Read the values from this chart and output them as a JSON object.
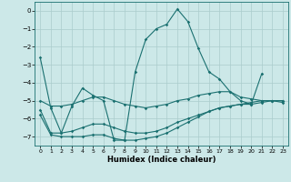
{
  "title": "",
  "xlabel": "Humidex (Indice chaleur)",
  "bg_color": "#cce8e8",
  "grid_color": "#aacccc",
  "line_color": "#1a7070",
  "xlim": [
    -0.5,
    23.5
  ],
  "ylim": [
    -7.5,
    0.5
  ],
  "yticks": [
    0,
    -1,
    -2,
    -3,
    -4,
    -5,
    -6,
    -7
  ],
  "xticks": [
    0,
    1,
    2,
    3,
    4,
    5,
    6,
    7,
    8,
    9,
    10,
    11,
    12,
    13,
    14,
    15,
    16,
    17,
    18,
    19,
    20,
    21,
    22,
    23
  ],
  "series": [
    {
      "x": [
        0,
        1,
        2,
        3,
        4,
        5,
        6,
        7,
        8,
        9,
        10,
        11,
        12,
        13,
        14,
        15,
        16,
        17,
        18,
        19,
        20,
        21
      ],
      "y": [
        -2.6,
        -5.4,
        -6.8,
        -5.3,
        -4.3,
        -4.7,
        -5.0,
        -7.2,
        -7.2,
        -3.4,
        -1.6,
        -1.0,
        -0.75,
        0.1,
        -0.6,
        -2.1,
        -3.4,
        -3.8,
        -4.5,
        -5.0,
        -5.2,
        -3.5
      ]
    },
    {
      "x": [
        0,
        1,
        2,
        3,
        4,
        5,
        6,
        7,
        8,
        9,
        10,
        11,
        12,
        13,
        14,
        15,
        16,
        17,
        18,
        19,
        20,
        21,
        22,
        23
      ],
      "y": [
        -5.0,
        -5.3,
        -5.3,
        -5.2,
        -5.0,
        -4.8,
        -4.8,
        -5.0,
        -5.2,
        -5.3,
        -5.4,
        -5.3,
        -5.2,
        -5.0,
        -4.9,
        -4.7,
        -4.6,
        -4.5,
        -4.5,
        -4.8,
        -4.9,
        -5.0,
        -5.0,
        -5.1
      ]
    },
    {
      "x": [
        0,
        1,
        2,
        3,
        4,
        5,
        6,
        7,
        8,
        9,
        10,
        11,
        12,
        13,
        14,
        15,
        16,
        17,
        18,
        19,
        20,
        21,
        22,
        23
      ],
      "y": [
        -5.5,
        -6.8,
        -6.8,
        -6.7,
        -6.5,
        -6.3,
        -6.3,
        -6.5,
        -6.7,
        -6.8,
        -6.8,
        -6.7,
        -6.5,
        -6.2,
        -6.0,
        -5.8,
        -5.6,
        -5.4,
        -5.3,
        -5.2,
        -5.2,
        -5.1,
        -5.0,
        -5.0
      ]
    },
    {
      "x": [
        0,
        1,
        2,
        3,
        4,
        5,
        6,
        7,
        8,
        9,
        10,
        11,
        12,
        13,
        14,
        15,
        16,
        17,
        18,
        19,
        20,
        21,
        22,
        23
      ],
      "y": [
        -5.8,
        -6.9,
        -7.0,
        -7.0,
        -7.0,
        -6.9,
        -6.9,
        -7.1,
        -7.2,
        -7.2,
        -7.1,
        -7.0,
        -6.8,
        -6.5,
        -6.2,
        -5.9,
        -5.6,
        -5.4,
        -5.3,
        -5.2,
        -5.1,
        -5.0,
        -5.0,
        -5.0
      ]
    }
  ]
}
